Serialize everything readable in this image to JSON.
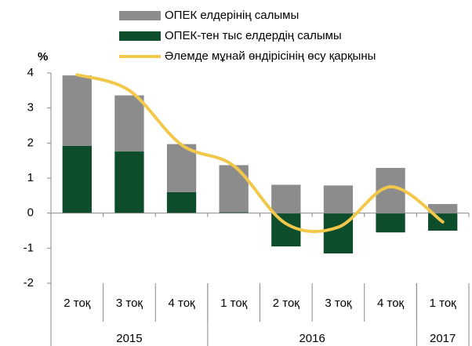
{
  "chart_data": {
    "type": "bar",
    "ylabel": "%",
    "categories": [
      "2 тоқ",
      "3 тоқ",
      "4 тоқ",
      "1 тоқ",
      "2 тоқ",
      "3 тоқ",
      "4 тоқ",
      "1 тоқ"
    ],
    "year_groups": [
      {
        "label": "2015",
        "span": 3
      },
      {
        "label": "2016",
        "span": 4
      },
      {
        "label": "2017",
        "span": 1
      }
    ],
    "series": [
      {
        "name": "ОПЕК елдерінің салымы",
        "type": "bar",
        "color": "#8c8c8c",
        "values": [
          2.01,
          1.6,
          1.37,
          1.34,
          0.81,
          0.79,
          1.29,
          0.26
        ]
      },
      {
        "name": "ОПЕК-тен тыс елдердің салымы",
        "type": "bar",
        "color": "#0e4d2c",
        "values": [
          1.92,
          1.76,
          0.6,
          0.03,
          -0.95,
          -1.15,
          -0.55,
          -0.5
        ]
      },
      {
        "name": "Әлемде мұнай өндірісінің өсу қарқыны",
        "type": "line",
        "color": "#f2c84b",
        "values": [
          3.95,
          3.5,
          1.95,
          1.35,
          -0.3,
          -0.4,
          0.75,
          -0.25
        ]
      }
    ],
    "ylim": [
      -2,
      4
    ],
    "yticks": [
      -2,
      -1,
      0,
      1,
      2,
      3,
      4
    ]
  }
}
